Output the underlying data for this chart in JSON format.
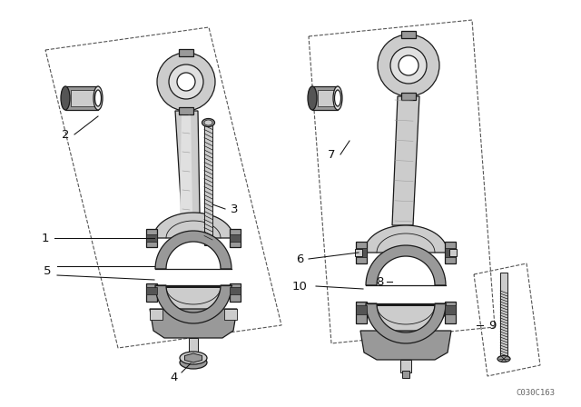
{
  "background_color": "#ffffff",
  "diagram_code": "C030C163",
  "line_color": "#1a1a1a",
  "dark_fill": "#555555",
  "mid_fill": "#999999",
  "light_fill": "#cccccc",
  "lighter_fill": "#e0e0e0",
  "label_color": "#111111",
  "frame_color": "#555555"
}
